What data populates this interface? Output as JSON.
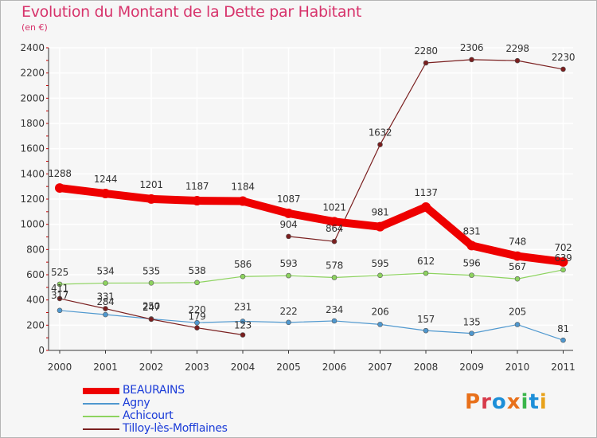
{
  "header": {
    "title": "Evolution du Montant de la Dette par Habitant",
    "unit": "(en €)"
  },
  "logo": {
    "text": "Proxiti",
    "colors": [
      "#e8701a",
      "#d73a4a",
      "#1d8fd8",
      "#e8701a",
      "#3ab54a",
      "#1d8fd8",
      "#e8a21a"
    ]
  },
  "colors": {
    "title": "#d7336b",
    "axis": "#333333",
    "tick_red": "#cc0000",
    "grid": "#ffffff"
  },
  "chart_data": {
    "type": "line",
    "title": "Evolution du Montant de la Dette par Habitant",
    "subtitle": "(en €)",
    "x": [
      2000,
      2001,
      2002,
      2003,
      2004,
      2005,
      2006,
      2007,
      2008,
      2009,
      2010,
      2011
    ],
    "x_labels": [
      "2000",
      "2001",
      "2002",
      "2003",
      "2004",
      "2005",
      "2006",
      "2007",
      "2008",
      "2009",
      "2010",
      "2011"
    ],
    "ylim": [
      0,
      2400
    ],
    "y_ticks": [
      0,
      200,
      400,
      600,
      800,
      1000,
      1200,
      1400,
      1600,
      1800,
      2000,
      2200,
      2400
    ],
    "grid": true,
    "legend_position": "bottom-left",
    "series": [
      {
        "name": "BEAURAINS",
        "color": "#ee0000",
        "label_color": "#1a3bd8",
        "emphasis": true,
        "values": [
          1288,
          1244,
          1201,
          1187,
          1184,
          1087,
          1021,
          981,
          1137,
          831,
          748,
          702
        ],
        "labels": [
          "1288",
          "1244",
          "1201",
          "1187",
          "1184",
          "1087",
          "1021",
          "981",
          "1137",
          "831",
          "748",
          "702"
        ]
      },
      {
        "name": "Agny",
        "color": "#4f98cf",
        "label_color": "#1a3bd8",
        "values": [
          317,
          284,
          250,
          220,
          231,
          222,
          234,
          206,
          157,
          135,
          205,
          81
        ],
        "labels": [
          "317",
          "284",
          "250",
          "220",
          "231",
          "222",
          "234",
          "206",
          "157",
          "135",
          "205",
          "81"
        ]
      },
      {
        "name": "Achicourt",
        "color": "#8dd35f",
        "label_color": "#1a3bd8",
        "values": [
          525,
          534,
          535,
          538,
          586,
          593,
          578,
          595,
          612,
          596,
          567,
          639
        ],
        "labels": [
          "525",
          "534",
          "535",
          "538",
          "586",
          "593",
          "578",
          "595",
          "612",
          "596",
          "567",
          "639"
        ]
      },
      {
        "name": "Tilloy-lès-Mofflaines",
        "color": "#7a1f1f",
        "label_color": "#1a3bd8",
        "values": [
          411,
          331,
          247,
          179,
          123,
          904,
          864,
          1632,
          2280,
          2306,
          2298,
          2230
        ],
        "labels": [
          "411",
          "331",
          "247",
          "179",
          "123",
          "904",
          "864",
          "1632",
          "2280",
          "2306",
          "2298",
          "2230"
        ],
        "missing_after": [
          2004
        ]
      }
    ]
  }
}
